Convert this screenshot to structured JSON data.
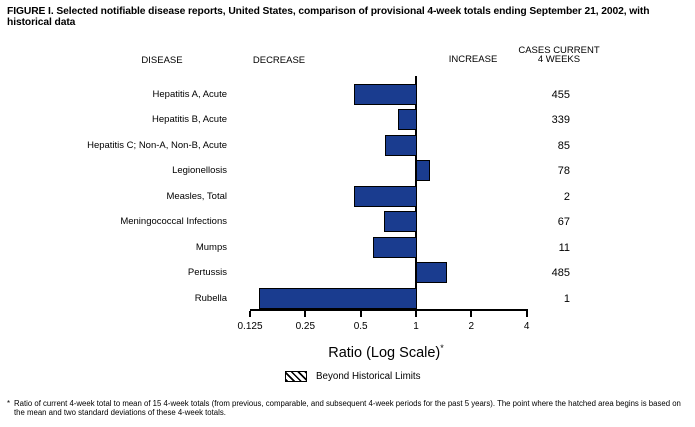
{
  "figure": {
    "title": "FIGURE I. Selected notifiable disease reports, United States, comparison of provisional 4-week totals ending September 21, 2002, with historical data"
  },
  "headers": {
    "disease": "DISEASE",
    "decrease": "DECREASE",
    "increase": "INCREASE",
    "cases_line1": "CASES CURRENT",
    "cases_line2": "4 WEEKS"
  },
  "chart_data": {
    "type": "bar",
    "orientation": "horizontal",
    "scale": "log2",
    "xlabel": "Ratio (Log Scale)",
    "xlabel_marker": "*",
    "xlim": [
      0.125,
      4
    ],
    "baseline_value": 1,
    "axis_ticks": [
      0.125,
      0.25,
      0.5,
      1,
      2,
      4
    ],
    "axis_tick_labels": [
      "0.125",
      "0.25",
      "0.5",
      "1",
      "2",
      "4"
    ],
    "bar_color": "#1a3c8f",
    "rows": [
      {
        "disease": "Hepatitis A, Acute",
        "ratio": 0.46,
        "cases": "455",
        "beyond_historical_limits": false
      },
      {
        "disease": "Hepatitis B, Acute",
        "ratio": 0.8,
        "cases": "339",
        "beyond_historical_limits": false
      },
      {
        "disease": "Hepatitis C; Non-A, Non-B, Acute",
        "ratio": 0.68,
        "cases": "85",
        "beyond_historical_limits": false
      },
      {
        "disease": "Legionellosis",
        "ratio": 1.17,
        "cases": "78",
        "beyond_historical_limits": false
      },
      {
        "disease": "Measles, Total",
        "ratio": 0.46,
        "cases": "2",
        "beyond_historical_limits": false
      },
      {
        "disease": "Meningococcal Infections",
        "ratio": 0.67,
        "cases": "67",
        "beyond_historical_limits": false
      },
      {
        "disease": "Mumps",
        "ratio": 0.58,
        "cases": "11",
        "beyond_historical_limits": false
      },
      {
        "disease": "Pertussis",
        "ratio": 1.45,
        "cases": "485",
        "beyond_historical_limits": false
      },
      {
        "disease": "Rubella",
        "ratio": 0.14,
        "cases": "1",
        "beyond_historical_limits": false
      }
    ],
    "legend": {
      "swatch": "diagonal-hatch",
      "label": "Beyond Historical Limits"
    }
  },
  "footnote": {
    "marker": "*",
    "text": "Ratio of current 4-week total to mean of 15 4-week totals (from previous, comparable, and subsequent 4-week periods for the past 5 years). The point where the hatched area begins is based on the mean and two standard deviations of these 4-week totals."
  }
}
